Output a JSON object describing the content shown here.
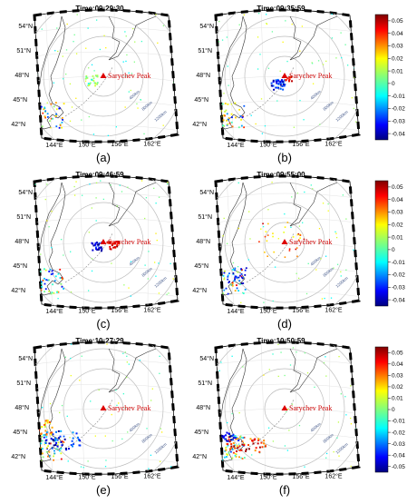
{
  "peak_label": "Sarychev Peak",
  "lat_labels": [
    "54°N",
    "51°N",
    "48°N",
    "45°N",
    "42°N"
  ],
  "lon_labels": [
    "144°E",
    "150°E",
    "156°E",
    "162°E"
  ],
  "ring_labels": [
    "400km",
    "800km",
    "1200km"
  ],
  "panels": [
    {
      "title": "Time:09:29:30",
      "label": "(a)",
      "pattern": "calm"
    },
    {
      "title": "Time:09:35:59",
      "label": "(b)",
      "pattern": "blue"
    },
    {
      "title": "Time:09:46:59",
      "label": "(c)",
      "pattern": "mixed"
    },
    {
      "title": "Time:09:55:00",
      "label": "(d)",
      "pattern": "ring"
    },
    {
      "title": "Time:10:27:29",
      "label": "(e)",
      "pattern": "far"
    },
    {
      "title": "Time:10:50:59",
      "label": "(f)",
      "pattern": "far2"
    }
  ],
  "colorbars": [
    {
      "ticks": [
        "0.05",
        "0.04",
        "0.03",
        "0.02",
        "0.01",
        "0",
        "-0.01",
        "-0.02",
        "-0.03",
        "-0.04"
      ]
    },
    {
      "ticks": [
        "0.05",
        "0.04",
        "0.03",
        "0.02",
        "0.01",
        "0",
        "-0.01",
        "-0.02",
        "-0.03",
        "-0.04"
      ]
    },
    {
      "ticks": [
        "0.05",
        "0.04",
        "0.03",
        "0.02",
        "0.01",
        "0",
        "-0.01",
        "-0.02",
        "-0.03",
        "-0.04",
        "-0.05"
      ]
    }
  ],
  "colors": {
    "peak": "#dd0000",
    "ring": "#bdbdbd",
    "coast": "#333333"
  }
}
